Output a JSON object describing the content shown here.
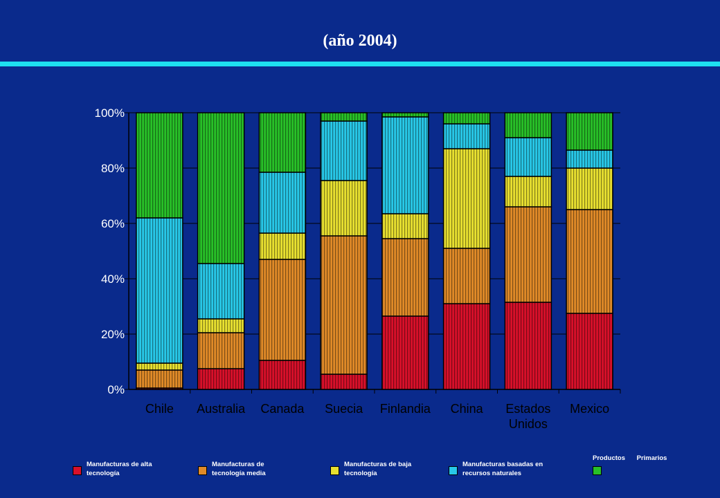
{
  "title": "(año 2004)",
  "chart_data": {
    "type": "bar",
    "stacked": true,
    "categories": [
      "Chile",
      "Australia",
      "Canada",
      "Suecia",
      "Finlandia",
      "China",
      "Estados Unidos",
      "Mexico"
    ],
    "ylim": [
      0,
      100
    ],
    "yticks": [
      "0%",
      "20%",
      "40%",
      "60%",
      "80%",
      "100%"
    ],
    "grid": true,
    "series": [
      {
        "name": "Manufacturas de alta tecnología",
        "color": "#d8102a",
        "values": [
          0.5,
          7.5,
          10.5,
          5.5,
          26.5,
          31,
          31.5,
          27.5
        ]
      },
      {
        "name": "Manufacturas de tecnología media",
        "color": "#e08a28",
        "values": [
          6.5,
          13,
          36.5,
          50,
          28,
          20,
          34.5,
          37.5
        ]
      },
      {
        "name": "Manufacturas de baja tecnología",
        "color": "#e8e030",
        "values": [
          2.5,
          5,
          9.5,
          20,
          9,
          36,
          11,
          15
        ]
      },
      {
        "name": "Manufacturas basadas en recursos naturales",
        "color": "#28c8e8",
        "values": [
          52.5,
          20,
          22,
          21.5,
          35,
          9,
          14,
          6.5
        ]
      },
      {
        "name": "Productos Primarios",
        "color": "#28c028",
        "values": [
          38,
          54.5,
          21.5,
          3,
          1.5,
          4,
          9,
          13.5
        ]
      }
    ]
  },
  "legend": [
    {
      "label": "Manufacturas de alta tecnología",
      "color": "#d8102a"
    },
    {
      "label": "Manufacturas de tecnología media",
      "color": "#e08a28"
    },
    {
      "label": "Manufacturas de baja tecnología",
      "color": "#e8e030"
    },
    {
      "label": "Manufacturas basadas en recursos naturales",
      "color": "#28c8e8"
    },
    {
      "label": "Productos Primarios",
      "color": "#28c028"
    }
  ]
}
